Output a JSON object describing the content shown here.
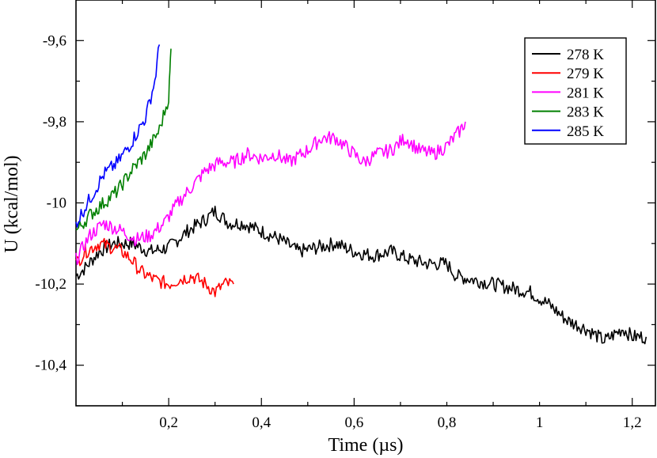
{
  "chart_data": {
    "type": "line",
    "xlabel": "Time (µs)",
    "ylabel": "U (kcal/mol)",
    "xlim": [
      0,
      1.25
    ],
    "ylim": [
      -10.5,
      -9.5
    ],
    "x_ticks": [
      "0,2",
      "0,4",
      "0,6",
      "0,8",
      "1",
      "1,2"
    ],
    "y_ticks": [
      "-9,6",
      "-9,8",
      "-10",
      "-10,2",
      "-10,4"
    ],
    "legend_position": "top-right",
    "series": [
      {
        "name": "278 K",
        "color": "#000000",
        "points": [
          [
            0.0,
            -10.18
          ],
          [
            0.02,
            -10.16
          ],
          [
            0.05,
            -10.12
          ],
          [
            0.08,
            -10.1
          ],
          [
            0.12,
            -10.1
          ],
          [
            0.16,
            -10.12
          ],
          [
            0.2,
            -10.11
          ],
          [
            0.24,
            -10.07
          ],
          [
            0.28,
            -10.04
          ],
          [
            0.3,
            -10.02
          ],
          [
            0.33,
            -10.05
          ],
          [
            0.36,
            -10.05
          ],
          [
            0.4,
            -10.07
          ],
          [
            0.44,
            -10.09
          ],
          [
            0.48,
            -10.12
          ],
          [
            0.52,
            -10.11
          ],
          [
            0.56,
            -10.1
          ],
          [
            0.6,
            -10.12
          ],
          [
            0.64,
            -10.13
          ],
          [
            0.68,
            -10.12
          ],
          [
            0.72,
            -10.14
          ],
          [
            0.76,
            -10.15
          ],
          [
            0.8,
            -10.15
          ],
          [
            0.82,
            -10.18
          ],
          [
            0.86,
            -10.19
          ],
          [
            0.9,
            -10.2
          ],
          [
            0.94,
            -10.21
          ],
          [
            0.98,
            -10.22
          ],
          [
            1.02,
            -10.25
          ],
          [
            1.06,
            -10.29
          ],
          [
            1.1,
            -10.31
          ],
          [
            1.14,
            -10.34
          ],
          [
            1.18,
            -10.31
          ],
          [
            1.2,
            -10.33
          ],
          [
            1.23,
            -10.33
          ]
        ]
      },
      {
        "name": "279 K",
        "color": "#ff0000",
        "points": [
          [
            0.0,
            -10.15
          ],
          [
            0.02,
            -10.12
          ],
          [
            0.05,
            -10.1
          ],
          [
            0.08,
            -10.11
          ],
          [
            0.1,
            -10.12
          ],
          [
            0.12,
            -10.14
          ],
          [
            0.14,
            -10.17
          ],
          [
            0.17,
            -10.19
          ],
          [
            0.2,
            -10.2
          ],
          [
            0.22,
            -10.19
          ],
          [
            0.25,
            -10.18
          ],
          [
            0.28,
            -10.2
          ],
          [
            0.3,
            -10.22
          ],
          [
            0.32,
            -10.2
          ],
          [
            0.34,
            -10.2
          ]
        ]
      },
      {
        "name": "281 K",
        "color": "#ff00ff",
        "points": [
          [
            0.0,
            -10.14
          ],
          [
            0.03,
            -10.08
          ],
          [
            0.06,
            -10.05
          ],
          [
            0.1,
            -10.07
          ],
          [
            0.13,
            -10.09
          ],
          [
            0.16,
            -10.08
          ],
          [
            0.19,
            -10.05
          ],
          [
            0.22,
            -10.0
          ],
          [
            0.25,
            -9.96
          ],
          [
            0.28,
            -9.92
          ],
          [
            0.31,
            -9.9
          ],
          [
            0.34,
            -9.9
          ],
          [
            0.37,
            -9.88
          ],
          [
            0.4,
            -9.89
          ],
          [
            0.43,
            -9.88
          ],
          [
            0.46,
            -9.9
          ],
          [
            0.5,
            -9.87
          ],
          [
            0.53,
            -9.84
          ],
          [
            0.56,
            -9.84
          ],
          [
            0.59,
            -9.87
          ],
          [
            0.62,
            -9.9
          ],
          [
            0.65,
            -9.88
          ],
          [
            0.68,
            -9.87
          ],
          [
            0.71,
            -9.84
          ],
          [
            0.74,
            -9.87
          ],
          [
            0.77,
            -9.88
          ],
          [
            0.8,
            -9.86
          ],
          [
            0.83,
            -9.82
          ],
          [
            0.84,
            -9.8
          ]
        ]
      },
      {
        "name": "283 K",
        "color": "#008000",
        "points": [
          [
            0.0,
            -10.07
          ],
          [
            0.03,
            -10.03
          ],
          [
            0.06,
            -10.0
          ],
          [
            0.09,
            -9.97
          ],
          [
            0.12,
            -9.92
          ],
          [
            0.15,
            -9.88
          ],
          [
            0.18,
            -9.82
          ],
          [
            0.2,
            -9.74
          ],
          [
            0.205,
            -9.62
          ]
        ]
      },
      {
        "name": "285 K",
        "color": "#0000ff",
        "points": [
          [
            0.0,
            -10.05
          ],
          [
            0.03,
            -9.99
          ],
          [
            0.06,
            -9.93
          ],
          [
            0.09,
            -9.9
          ],
          [
            0.12,
            -9.85
          ],
          [
            0.15,
            -9.79
          ],
          [
            0.17,
            -9.7
          ],
          [
            0.18,
            -9.61
          ]
        ]
      }
    ]
  }
}
